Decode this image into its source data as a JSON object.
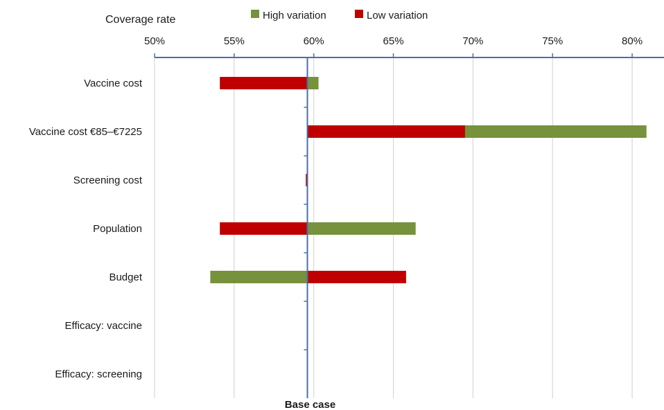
{
  "chart_data": {
    "type": "bar",
    "orientation": "horizontal",
    "subtype": "tornado",
    "xlabel": "Coverage rate",
    "xlim": [
      50,
      82
    ],
    "x_ticks": [
      50,
      55,
      60,
      65,
      70,
      75,
      80
    ],
    "x_tick_labels": [
      "50%",
      "55%",
      "60%",
      "65%",
      "70%",
      "75%",
      "80%"
    ],
    "x_axis_position": "top",
    "grid": "vertical",
    "base_case": 59.6,
    "base_case_label": "Base case",
    "legend_position": "top",
    "categories": [
      "Vaccine cost",
      "Vaccine cost €85–€7225",
      "Screening cost",
      "Population",
      "Budget",
      "Efficacy: vaccine",
      "Efficacy: screening"
    ],
    "series": [
      {
        "name": "High variation",
        "color": "#76923c",
        "values": [
          60.3,
          80.9,
          59.6,
          66.4,
          53.5,
          59.6,
          59.6
        ]
      },
      {
        "name": "Low variation",
        "color": "#c00000",
        "values": [
          54.1,
          69.5,
          59.5,
          54.1,
          65.8,
          59.6,
          59.6
        ]
      }
    ]
  }
}
